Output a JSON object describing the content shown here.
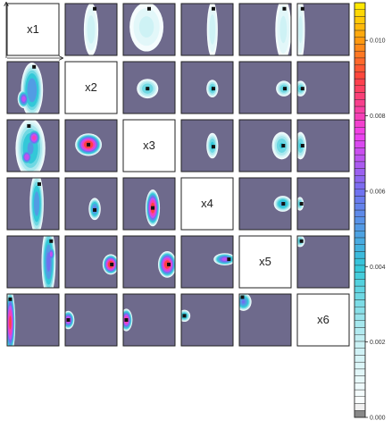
{
  "chart_data": {
    "type": "heatmap",
    "variables": [
      "x1",
      "x2",
      "x3",
      "x4",
      "x5",
      "x6"
    ],
    "grid_size": 6,
    "background_color": "#6e6a8c",
    "colorbar": {
      "range": [
        0,
        0.011
      ],
      "ticks": [
        0.0,
        0.002,
        0.004,
        0.006,
        0.008,
        0.01
      ],
      "tick_labels": [
        "0.000",
        "0.002",
        "0.004",
        "0.006",
        "0.008",
        "0.010"
      ],
      "stops": [
        {
          "v": 0.0,
          "color": "#555555"
        },
        {
          "v": 0.0003,
          "color": "#ffffff"
        },
        {
          "v": 0.002,
          "color": "#c8f0f4"
        },
        {
          "v": 0.004,
          "color": "#33c8d8"
        },
        {
          "v": 0.006,
          "color": "#7070f0"
        },
        {
          "v": 0.0075,
          "color": "#f040f0"
        },
        {
          "v": 0.009,
          "color": "#ff4040"
        },
        {
          "v": 0.01,
          "color": "#ff9a10"
        },
        {
          "v": 0.011,
          "color": "#fff000"
        }
      ]
    },
    "cells": [
      {
        "row": 0,
        "col": 1,
        "marker": [
          0.57,
          0.1
        ],
        "blobs": [
          {
            "cx": 0.5,
            "cy": 0.5,
            "rx": 0.16,
            "ry": 0.58,
            "peak": 0.0022
          }
        ]
      },
      {
        "row": 0,
        "col": 2,
        "marker": [
          0.5,
          0.1
        ],
        "blobs": [
          {
            "cx": 0.45,
            "cy": 0.45,
            "rx": 0.38,
            "ry": 0.55,
            "peak": 0.002
          }
        ]
      },
      {
        "row": 0,
        "col": 3,
        "marker": [
          0.62,
          0.1
        ],
        "blobs": [
          {
            "cx": 0.6,
            "cy": 0.5,
            "rx": 0.12,
            "ry": 0.62,
            "peak": 0.0022
          }
        ]
      },
      {
        "row": 0,
        "col": 4,
        "marker": [
          0.87,
          0.1
        ],
        "blobs": [
          {
            "cx": 0.85,
            "cy": 0.5,
            "rx": 0.18,
            "ry": 0.7,
            "peak": 0.002
          }
        ]
      },
      {
        "row": 0,
        "col": 5,
        "marker": [
          0.1,
          0.1
        ],
        "blobs": [
          {
            "cx": 0.06,
            "cy": 0.5,
            "rx": 0.1,
            "ry": 0.7,
            "peak": 0.002
          }
        ]
      },
      {
        "row": 1,
        "col": 0,
        "marker": [
          0.52,
          0.1
        ],
        "blobs": [
          {
            "cx": 0.48,
            "cy": 0.55,
            "rx": 0.22,
            "ry": 0.55,
            "peak": 0.0058
          },
          {
            "cx": 0.32,
            "cy": 0.72,
            "rx": 0.12,
            "ry": 0.18,
            "peak": 0.0074
          }
        ]
      },
      {
        "row": 1,
        "col": 2,
        "marker": [
          0.47,
          0.52
        ],
        "blobs": [
          {
            "cx": 0.47,
            "cy": 0.52,
            "rx": 0.22,
            "ry": 0.2,
            "peak": 0.004
          }
        ]
      },
      {
        "row": 1,
        "col": 3,
        "marker": [
          0.62,
          0.52
        ],
        "blobs": [
          {
            "cx": 0.6,
            "cy": 0.52,
            "rx": 0.12,
            "ry": 0.18,
            "peak": 0.0042
          }
        ]
      },
      {
        "row": 1,
        "col": 4,
        "marker": [
          0.88,
          0.52
        ],
        "blobs": [
          {
            "cx": 0.86,
            "cy": 0.52,
            "rx": 0.16,
            "ry": 0.16,
            "peak": 0.004
          }
        ]
      },
      {
        "row": 1,
        "col": 5,
        "marker": [
          0.1,
          0.52
        ],
        "blobs": [
          {
            "cx": 0.06,
            "cy": 0.52,
            "rx": 0.12,
            "ry": 0.16,
            "peak": 0.004
          }
        ]
      },
      {
        "row": 2,
        "col": 0,
        "marker": [
          0.42,
          0.12
        ],
        "blobs": [
          {
            "cx": 0.45,
            "cy": 0.55,
            "rx": 0.3,
            "ry": 0.6,
            "peak": 0.005
          },
          {
            "cx": 0.52,
            "cy": 0.35,
            "rx": 0.14,
            "ry": 0.18,
            "peak": 0.0082
          },
          {
            "cx": 0.38,
            "cy": 0.72,
            "rx": 0.12,
            "ry": 0.16,
            "peak": 0.0078
          }
        ]
      },
      {
        "row": 2,
        "col": 1,
        "marker": [
          0.45,
          0.48
        ],
        "blobs": [
          {
            "cx": 0.45,
            "cy": 0.48,
            "rx": 0.26,
            "ry": 0.22,
            "peak": 0.0098
          }
        ]
      },
      {
        "row": 2,
        "col": 3,
        "marker": [
          0.62,
          0.52
        ],
        "blobs": [
          {
            "cx": 0.6,
            "cy": 0.5,
            "rx": 0.12,
            "ry": 0.26,
            "peak": 0.0042
          }
        ]
      },
      {
        "row": 2,
        "col": 4,
        "marker": [
          0.85,
          0.5
        ],
        "blobs": [
          {
            "cx": 0.82,
            "cy": 0.5,
            "rx": 0.2,
            "ry": 0.28,
            "peak": 0.004
          }
        ]
      },
      {
        "row": 2,
        "col": 5,
        "marker": [
          0.1,
          0.5
        ],
        "blobs": [
          {
            "cx": 0.06,
            "cy": 0.5,
            "rx": 0.12,
            "ry": 0.28,
            "peak": 0.004
          }
        ]
      },
      {
        "row": 3,
        "col": 0,
        "marker": [
          0.62,
          0.12
        ],
        "blobs": [
          {
            "cx": 0.57,
            "cy": 0.5,
            "rx": 0.14,
            "ry": 0.62,
            "peak": 0.0056
          }
        ]
      },
      {
        "row": 3,
        "col": 1,
        "marker": [
          0.57,
          0.62
        ],
        "blobs": [
          {
            "cx": 0.57,
            "cy": 0.6,
            "rx": 0.12,
            "ry": 0.22,
            "peak": 0.006
          }
        ]
      },
      {
        "row": 3,
        "col": 2,
        "marker": [
          0.57,
          0.58
        ],
        "blobs": [
          {
            "cx": 0.57,
            "cy": 0.58,
            "rx": 0.14,
            "ry": 0.36,
            "peak": 0.0094
          }
        ]
      },
      {
        "row": 3,
        "col": 4,
        "marker": [
          0.85,
          0.5
        ],
        "blobs": [
          {
            "cx": 0.84,
            "cy": 0.5,
            "rx": 0.18,
            "ry": 0.16,
            "peak": 0.0052
          }
        ]
      },
      {
        "row": 3,
        "col": 5,
        "marker": [
          0.08,
          0.5
        ],
        "blobs": [
          {
            "cx": 0.05,
            "cy": 0.5,
            "rx": 0.08,
            "ry": 0.14,
            "peak": 0.004
          }
        ]
      },
      {
        "row": 4,
        "col": 0,
        "marker": [
          0.85,
          0.1
        ],
        "blobs": [
          {
            "cx": 0.8,
            "cy": 0.5,
            "rx": 0.14,
            "ry": 0.7,
            "peak": 0.0062
          },
          {
            "cx": 0.85,
            "cy": 0.35,
            "rx": 0.08,
            "ry": 0.16,
            "peak": 0.0074
          }
        ]
      },
      {
        "row": 4,
        "col": 1,
        "marker": [
          0.9,
          0.55
        ],
        "blobs": [
          {
            "cx": 0.88,
            "cy": 0.55,
            "rx": 0.16,
            "ry": 0.2,
            "peak": 0.0098
          }
        ]
      },
      {
        "row": 4,
        "col": 2,
        "marker": [
          0.88,
          0.55
        ],
        "blobs": [
          {
            "cx": 0.85,
            "cy": 0.55,
            "rx": 0.18,
            "ry": 0.26,
            "peak": 0.0096
          }
        ]
      },
      {
        "row": 4,
        "col": 3,
        "marker": [
          0.92,
          0.45
        ],
        "blobs": [
          {
            "cx": 0.84,
            "cy": 0.45,
            "rx": 0.22,
            "ry": 0.12,
            "peak": 0.0072
          }
        ]
      },
      {
        "row": 4,
        "col": 5,
        "marker": [
          0.08,
          0.1
        ],
        "blobs": [
          {
            "cx": 0.05,
            "cy": 0.1,
            "rx": 0.1,
            "ry": 0.12,
            "peak": 0.004
          }
        ]
      },
      {
        "row": 5,
        "col": 0,
        "marker": [
          0.06,
          0.1
        ],
        "blobs": [
          {
            "cx": 0.06,
            "cy": 0.55,
            "rx": 0.1,
            "ry": 0.65,
            "peak": 0.009
          }
        ]
      },
      {
        "row": 5,
        "col": 1,
        "marker": [
          0.06,
          0.5
        ],
        "blobs": [
          {
            "cx": 0.06,
            "cy": 0.5,
            "rx": 0.12,
            "ry": 0.18,
            "peak": 0.008
          }
        ]
      },
      {
        "row": 5,
        "col": 2,
        "marker": [
          0.06,
          0.5
        ],
        "blobs": [
          {
            "cx": 0.06,
            "cy": 0.5,
            "rx": 0.12,
            "ry": 0.22,
            "peak": 0.0086
          }
        ]
      },
      {
        "row": 5,
        "col": 3,
        "marker": [
          0.06,
          0.42
        ],
        "blobs": [
          {
            "cx": 0.06,
            "cy": 0.42,
            "rx": 0.12,
            "ry": 0.12,
            "peak": 0.005
          }
        ]
      },
      {
        "row": 5,
        "col": 4,
        "marker": [
          0.06,
          0.06
        ],
        "blobs": [
          {
            "cx": 0.08,
            "cy": 0.15,
            "rx": 0.16,
            "ry": 0.18,
            "peak": 0.006
          }
        ]
      }
    ]
  }
}
